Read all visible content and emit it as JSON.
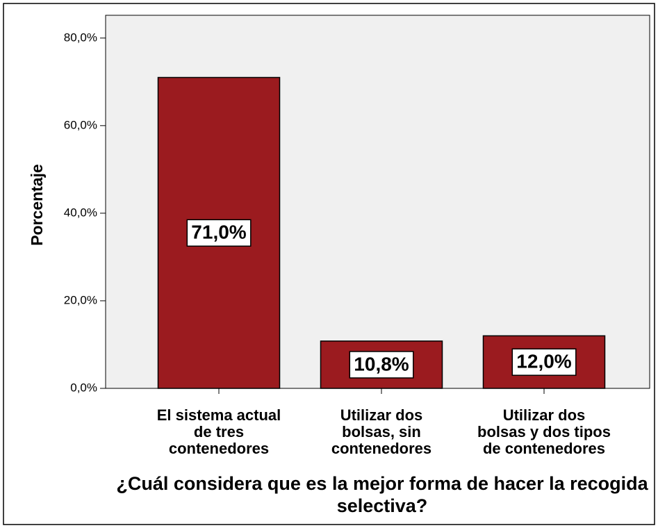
{
  "chart_data": {
    "type": "bar",
    "y_label": "Porcentaje",
    "x_label": "¿Cuál considera que es la mejor forma de hacer la recogida selectiva?",
    "categories": [
      "El sistema actual\nde tres\ncontenedores",
      "Utilizar dos\nbolsas, sin\ncontenedores",
      "Utilizar dos\nbolsas y dos tipos\nde contenedores"
    ],
    "values": [
      71.0,
      10.8,
      12.0
    ],
    "value_labels": [
      "71,0%",
      "10,8%",
      "12,0%"
    ],
    "color": "#9b1b1f",
    "ylim": [
      0,
      85.2
    ],
    "yticks": [
      {
        "value": 0,
        "label": "0,0%"
      },
      {
        "value": 20,
        "label": "20,0%"
      },
      {
        "value": 40,
        "label": "40,0%"
      },
      {
        "value": 60,
        "label": "60,0%"
      },
      {
        "value": 80,
        "label": "80,0%"
      }
    ]
  }
}
